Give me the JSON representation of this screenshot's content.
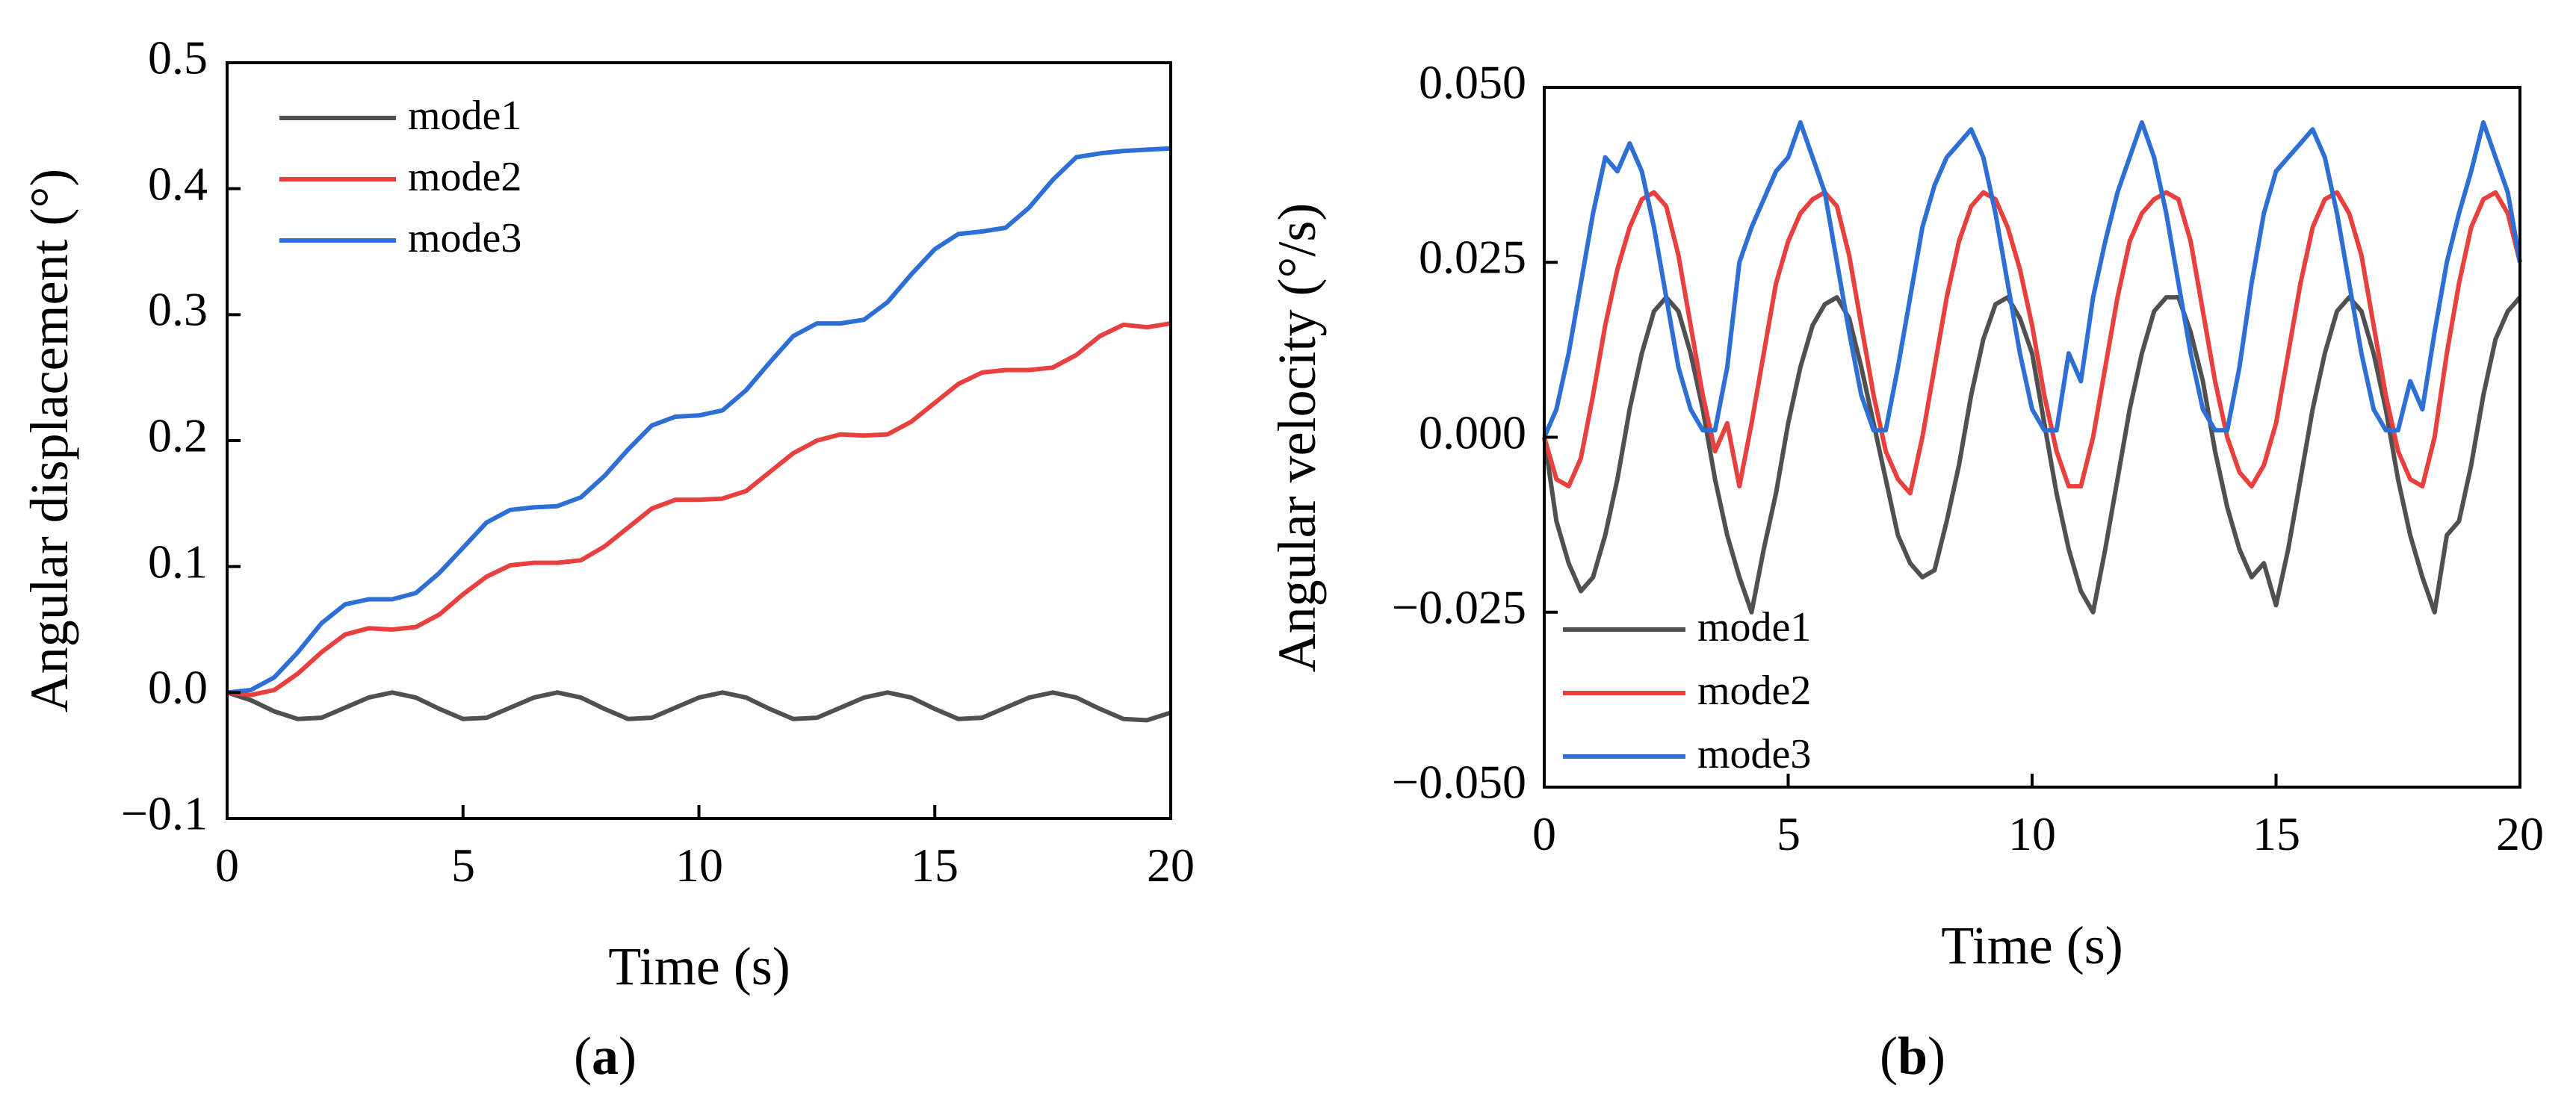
{
  "chart_data": [
    {
      "type": "line",
      "panel_label": "(a)",
      "panel_label_parts": [
        "(",
        "a",
        ")"
      ],
      "xlabel": "Time (s)",
      "ylabel": "Angular displacement (°)",
      "xlim": [
        0,
        20
      ],
      "ylim": [
        -0.1,
        0.5
      ],
      "xticks": [
        0,
        5,
        10,
        15,
        20
      ],
      "xtick_labels": [
        "0",
        "5",
        "10",
        "15",
        "20"
      ],
      "yticks": [
        -0.1,
        0.0,
        0.1,
        0.2,
        0.3,
        0.4,
        0.5
      ],
      "ytick_labels": [
        "−0.1",
        "0.0",
        "0.1",
        "0.2",
        "0.3",
        "0.4",
        "0.5"
      ],
      "grid": false,
      "legend_position": "top-left",
      "series": [
        {
          "name": "mode1",
          "color": "#505050",
          "x": [
            0,
            0.5,
            1,
            1.5,
            2,
            2.5,
            3,
            3.5,
            4,
            4.5,
            5,
            5.5,
            6,
            6.5,
            7,
            7.5,
            8,
            8.5,
            9,
            9.5,
            10,
            10.5,
            11,
            11.5,
            12,
            12.5,
            13,
            13.5,
            14,
            14.5,
            15,
            15.5,
            16,
            16.5,
            17,
            17.5,
            18,
            18.5,
            19,
            19.5,
            20
          ],
          "y": [
            0,
            -0.006,
            -0.015,
            -0.021,
            -0.02,
            -0.012,
            -0.004,
            0,
            -0.004,
            -0.013,
            -0.021,
            -0.02,
            -0.012,
            -0.004,
            0,
            -0.004,
            -0.013,
            -0.021,
            -0.02,
            -0.012,
            -0.004,
            0,
            -0.004,
            -0.013,
            -0.021,
            -0.02,
            -0.012,
            -0.004,
            0,
            -0.004,
            -0.013,
            -0.021,
            -0.02,
            -0.012,
            -0.004,
            0,
            -0.004,
            -0.013,
            -0.021,
            -0.022,
            -0.016
          ]
        },
        {
          "name": "mode2",
          "color": "#e8403e",
          "x": [
            0,
            0.5,
            1,
            1.5,
            2,
            2.5,
            3,
            3.5,
            4,
            4.5,
            5,
            5.5,
            6,
            6.5,
            7,
            7.5,
            8,
            8.5,
            9,
            9.5,
            10,
            10.5,
            11,
            11.5,
            12,
            12.5,
            13,
            13.5,
            14,
            14.5,
            15,
            15.5,
            16,
            16.5,
            17,
            17.5,
            18,
            18.5,
            19,
            19.5,
            20
          ],
          "y": [
            0,
            -0.002,
            0.002,
            0.015,
            0.032,
            0.046,
            0.051,
            0.05,
            0.052,
            0.062,
            0.078,
            0.092,
            0.101,
            0.103,
            0.103,
            0.105,
            0.116,
            0.131,
            0.146,
            0.153,
            0.153,
            0.154,
            0.16,
            0.175,
            0.19,
            0.2,
            0.205,
            0.204,
            0.205,
            0.215,
            0.23,
            0.245,
            0.254,
            0.256,
            0.256,
            0.258,
            0.268,
            0.283,
            0.292,
            0.29,
            0.293
          ]
        },
        {
          "name": "mode3",
          "color": "#2e6fd6",
          "x": [
            0,
            0.5,
            1,
            1.5,
            2,
            2.5,
            3,
            3.5,
            4,
            4.5,
            5,
            5.5,
            6,
            6.5,
            7,
            7.5,
            8,
            8.5,
            9,
            9.5,
            10,
            10.5,
            11,
            11.5,
            12,
            12.5,
            13,
            13.5,
            14,
            14.5,
            15,
            15.5,
            16,
            16.5,
            17,
            17.5,
            18,
            18.5,
            19,
            19.5,
            20
          ],
          "y": [
            0,
            0.002,
            0.012,
            0.032,
            0.055,
            0.07,
            0.074,
            0.074,
            0.079,
            0.095,
            0.115,
            0.135,
            0.145,
            0.147,
            0.148,
            0.155,
            0.172,
            0.193,
            0.212,
            0.219,
            0.22,
            0.224,
            0.24,
            0.262,
            0.283,
            0.293,
            0.293,
            0.296,
            0.31,
            0.332,
            0.352,
            0.364,
            0.366,
            0.369,
            0.385,
            0.407,
            0.425,
            0.428,
            0.43,
            0.431,
            0.432
          ]
        }
      ]
    },
    {
      "type": "line",
      "panel_label": "(b)",
      "panel_label_parts": [
        "(",
        "b",
        ")"
      ],
      "xlabel": "Time (s)",
      "ylabel": "Angular velocity (°/s)",
      "xlim": [
        0,
        20
      ],
      "ylim": [
        -0.05,
        0.05
      ],
      "xticks": [
        0,
        5,
        10,
        15,
        20
      ],
      "xtick_labels": [
        "0",
        "5",
        "10",
        "15",
        "20"
      ],
      "yticks": [
        -0.05,
        -0.025,
        0.0,
        0.025,
        0.05
      ],
      "ytick_labels": [
        "−0.050",
        "−0.025",
        "0.000",
        "0.025",
        "0.050"
      ],
      "grid": false,
      "legend_position": "bottom-left",
      "series": [
        {
          "name": "mode1",
          "color": "#505050",
          "x": [
            0,
            0.25,
            0.5,
            0.75,
            1,
            1.25,
            1.5,
            1.75,
            2,
            2.25,
            2.5,
            2.75,
            3,
            3.25,
            3.5,
            3.75,
            4,
            4.25,
            4.5,
            4.75,
            5,
            5.25,
            5.5,
            5.75,
            6,
            6.25,
            6.5,
            6.75,
            7,
            7.25,
            7.5,
            7.75,
            8,
            8.25,
            8.5,
            8.75,
            9,
            9.25,
            9.5,
            9.75,
            10,
            10.25,
            10.5,
            10.75,
            11,
            11.25,
            11.5,
            11.75,
            12,
            12.25,
            12.5,
            12.75,
            13,
            13.25,
            13.5,
            13.75,
            14,
            14.25,
            14.5,
            14.75,
            15,
            15.25,
            15.5,
            15.75,
            16,
            16.25,
            16.5,
            16.75,
            17,
            17.25,
            17.5,
            17.75,
            18,
            18.25,
            18.5,
            18.75,
            19,
            19.25,
            19.5,
            19.75,
            20
          ],
          "y": [
            0,
            -0.012,
            -0.018,
            -0.022,
            -0.02,
            -0.014,
            -0.006,
            0.004,
            0.012,
            0.018,
            0.02,
            0.018,
            0.012,
            0.004,
            -0.006,
            -0.014,
            -0.02,
            -0.025,
            -0.016,
            -0.008,
            0.002,
            0.01,
            0.016,
            0.019,
            0.02,
            0.017,
            0.01,
            0.002,
            -0.006,
            -0.014,
            -0.018,
            -0.02,
            -0.019,
            -0.012,
            -0.004,
            0.006,
            0.014,
            0.019,
            0.02,
            0.017,
            0.012,
            0.002,
            -0.008,
            -0.016,
            -0.022,
            -0.025,
            -0.016,
            -0.006,
            0.004,
            0.012,
            0.018,
            0.02,
            0.02,
            0.015,
            0.008,
            -0.002,
            -0.01,
            -0.016,
            -0.02,
            -0.018,
            -0.024,
            -0.016,
            -0.006,
            0.004,
            0.012,
            0.018,
            0.02,
            0.018,
            0.012,
            0.004,
            -0.006,
            -0.014,
            -0.02,
            -0.025,
            -0.014,
            -0.012,
            -0.004,
            0.006,
            0.014,
            0.018,
            0.02
          ]
        },
        {
          "name": "mode2",
          "color": "#e8403e",
          "x": [
            0,
            0.25,
            0.5,
            0.75,
            1,
            1.25,
            1.5,
            1.75,
            2,
            2.25,
            2.5,
            2.75,
            3,
            3.25,
            3.5,
            3.75,
            4,
            4.25,
            4.5,
            4.75,
            5,
            5.25,
            5.5,
            5.75,
            6,
            6.25,
            6.5,
            6.75,
            7,
            7.25,
            7.5,
            7.75,
            8,
            8.25,
            8.5,
            8.75,
            9,
            9.25,
            9.5,
            9.75,
            10,
            10.25,
            10.5,
            10.75,
            11,
            11.25,
            11.5,
            11.75,
            12,
            12.25,
            12.5,
            12.75,
            13,
            13.25,
            13.5,
            13.75,
            14,
            14.25,
            14.5,
            14.75,
            15,
            15.25,
            15.5,
            15.75,
            16,
            16.25,
            16.5,
            16.75,
            17,
            17.25,
            17.5,
            17.75,
            18,
            18.25,
            18.5,
            18.75,
            19,
            19.25,
            19.5,
            19.75,
            20
          ],
          "y": [
            0,
            -0.006,
            -0.007,
            -0.003,
            0.006,
            0.016,
            0.024,
            0.03,
            0.034,
            0.035,
            0.033,
            0.026,
            0.016,
            0.006,
            -0.002,
            0.002,
            -0.007,
            0.002,
            0.012,
            0.022,
            0.028,
            0.032,
            0.034,
            0.035,
            0.033,
            0.026,
            0.016,
            0.006,
            -0.002,
            -0.006,
            -0.008,
            0.0,
            0.01,
            0.02,
            0.028,
            0.033,
            0.035,
            0.034,
            0.03,
            0.024,
            0.016,
            0.006,
            -0.002,
            -0.007,
            -0.007,
            0.0,
            0.01,
            0.02,
            0.028,
            0.032,
            0.034,
            0.035,
            0.034,
            0.028,
            0.018,
            0.008,
            0.0,
            -0.005,
            -0.007,
            -0.004,
            0.002,
            0.012,
            0.022,
            0.03,
            0.034,
            0.035,
            0.032,
            0.026,
            0.016,
            0.006,
            -0.002,
            -0.006,
            -0.007,
            0.0,
            0.012,
            0.022,
            0.03,
            0.034,
            0.035,
            0.032,
            0.025
          ]
        },
        {
          "name": "mode3",
          "color": "#2e6fd6",
          "x": [
            0,
            0.25,
            0.5,
            0.75,
            1,
            1.25,
            1.5,
            1.75,
            2,
            2.25,
            2.5,
            2.75,
            3,
            3.25,
            3.5,
            3.75,
            4,
            4.25,
            4.5,
            4.75,
            5,
            5.25,
            5.5,
            5.75,
            6,
            6.25,
            6.5,
            6.75,
            7,
            7.25,
            7.5,
            7.75,
            8,
            8.25,
            8.5,
            8.75,
            9,
            9.25,
            9.5,
            9.75,
            10,
            10.25,
            10.5,
            10.75,
            11,
            11.25,
            11.5,
            11.75,
            12,
            12.25,
            12.5,
            12.75,
            13,
            13.25,
            13.5,
            13.75,
            14,
            14.25,
            14.5,
            14.75,
            15,
            15.25,
            15.5,
            15.75,
            16,
            16.25,
            16.5,
            16.75,
            17,
            17.25,
            17.5,
            17.75,
            18,
            18.25,
            18.5,
            18.75,
            19,
            19.25,
            19.5,
            19.75,
            20
          ],
          "y": [
            0,
            0.004,
            0.012,
            0.022,
            0.032,
            0.04,
            0.038,
            0.042,
            0.038,
            0.03,
            0.02,
            0.01,
            0.004,
            0.001,
            0.001,
            0.01,
            0.025,
            0.03,
            0.034,
            0.038,
            0.04,
            0.045,
            0.04,
            0.035,
            0.025,
            0.015,
            0.006,
            0.001,
            0.001,
            0.01,
            0.02,
            0.03,
            0.036,
            0.04,
            0.042,
            0.044,
            0.04,
            0.032,
            0.022,
            0.012,
            0.004,
            0.001,
            0.001,
            0.012,
            0.008,
            0.02,
            0.028,
            0.035,
            0.04,
            0.045,
            0.04,
            0.032,
            0.022,
            0.012,
            0.004,
            0.001,
            0.001,
            0.01,
            0.022,
            0.032,
            0.038,
            0.04,
            0.042,
            0.044,
            0.04,
            0.032,
            0.022,
            0.012,
            0.004,
            0.001,
            0.001,
            0.008,
            0.004,
            0.015,
            0.025,
            0.032,
            0.038,
            0.045,
            0.04,
            0.035,
            0.025
          ]
        }
      ]
    }
  ]
}
